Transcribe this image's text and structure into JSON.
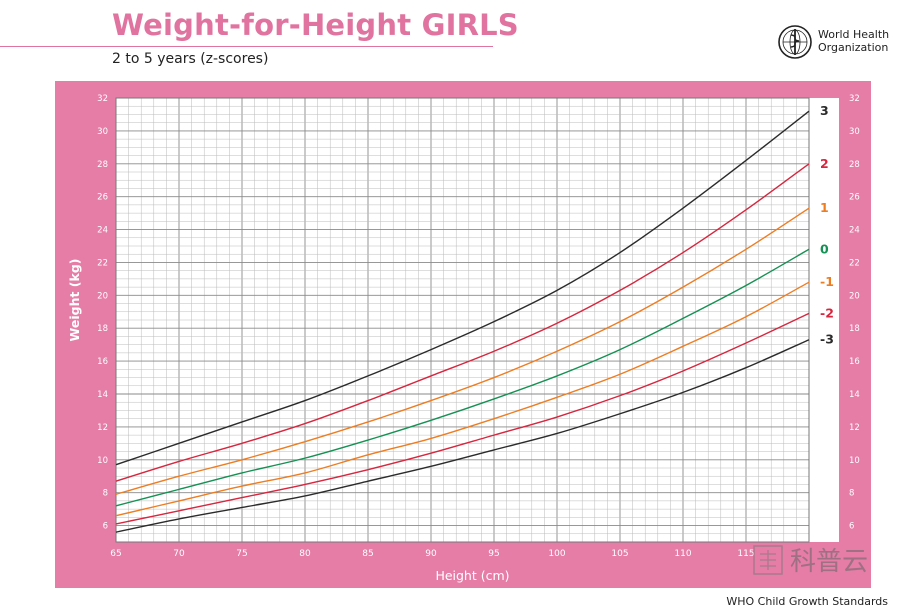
{
  "header": {
    "title": "Weight-for-Height GIRLS",
    "subtitle": "2 to 5 years (z-scores)"
  },
  "organization": {
    "name_line1": "World Health",
    "name_line2": "Organization",
    "logo_icon": "who-emblem-icon"
  },
  "footer": {
    "text": "WHO Child Growth Standards"
  },
  "watermark": {
    "text": "科普云",
    "icon": "watermark-seal-icon"
  },
  "colors": {
    "panel": "#e57da7",
    "title": "#e0739f",
    "black": "#2b2b2b",
    "red": "#d7263d",
    "orange": "#ee7d22",
    "green": "#159153"
  },
  "chart_data": {
    "type": "line",
    "title": "",
    "xlabel": "Height (cm)",
    "ylabel": "Weight (kg)",
    "xlim": [
      65,
      120
    ],
    "ylim": [
      5,
      32
    ],
    "x_ticks": [
      65,
      70,
      75,
      80,
      85,
      90,
      95,
      100,
      105,
      110,
      115
    ],
    "y_ticks": [
      6,
      8,
      10,
      12,
      14,
      16,
      18,
      20,
      22,
      24,
      26,
      28,
      30,
      32
    ],
    "grid": true,
    "legend": "right",
    "x": [
      65,
      70,
      75,
      80,
      85,
      90,
      95,
      100,
      105,
      110,
      115,
      120
    ],
    "series": [
      {
        "name": "3",
        "color": "#2b2b2b",
        "values": [
          9.7,
          11.0,
          12.3,
          13.6,
          15.1,
          16.7,
          18.4,
          20.3,
          22.6,
          25.3,
          28.2,
          31.2
        ]
      },
      {
        "name": "2",
        "color": "#d7263d",
        "values": [
          8.7,
          9.9,
          11.0,
          12.2,
          13.6,
          15.1,
          16.6,
          18.3,
          20.3,
          22.6,
          25.2,
          28.0
        ]
      },
      {
        "name": "1",
        "color": "#ee7d22",
        "values": [
          7.9,
          9.0,
          10.0,
          11.1,
          12.3,
          13.6,
          15.0,
          16.6,
          18.4,
          20.5,
          22.8,
          25.3
        ]
      },
      {
        "name": "0",
        "color": "#159153",
        "values": [
          7.2,
          8.2,
          9.2,
          10.1,
          11.2,
          12.4,
          13.7,
          15.1,
          16.7,
          18.6,
          20.6,
          22.8
        ]
      },
      {
        "name": "-1",
        "color": "#ee7d22",
        "values": [
          6.6,
          7.5,
          8.4,
          9.2,
          10.3,
          11.3,
          12.5,
          13.8,
          15.2,
          16.9,
          18.7,
          20.8
        ]
      },
      {
        "name": "-2",
        "color": "#d7263d",
        "values": [
          6.1,
          6.9,
          7.7,
          8.5,
          9.4,
          10.4,
          11.5,
          12.6,
          13.9,
          15.4,
          17.1,
          18.9
        ]
      },
      {
        "name": "-3",
        "color": "#2b2b2b",
        "values": [
          5.6,
          6.4,
          7.1,
          7.8,
          8.7,
          9.6,
          10.6,
          11.6,
          12.8,
          14.1,
          15.6,
          17.3
        ]
      }
    ]
  }
}
